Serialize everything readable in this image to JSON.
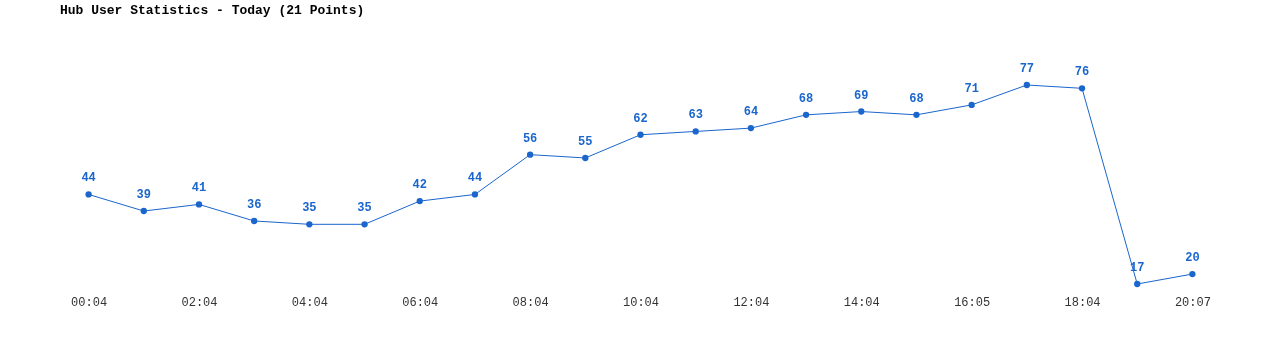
{
  "chart_data": {
    "type": "line",
    "title": "Hub User Statistics - Today (21 Points)",
    "categories": [
      "00:04",
      null,
      "02:04",
      null,
      "04:04",
      null,
      "06:04",
      null,
      "08:04",
      null,
      "10:04",
      null,
      "12:04",
      null,
      "14:04",
      null,
      "16:05",
      null,
      "18:04",
      null,
      "20:07"
    ],
    "series": [
      {
        "color": "#1a66cc",
        "values": [
          44,
          39,
          41,
          36,
          35,
          35,
          42,
          44,
          56,
          55,
          62,
          63,
          64,
          68,
          69,
          68,
          71,
          77,
          76,
          17,
          20
        ]
      }
    ],
    "data_labels": true,
    "marker": "circle",
    "tick_labels": "x"
  }
}
